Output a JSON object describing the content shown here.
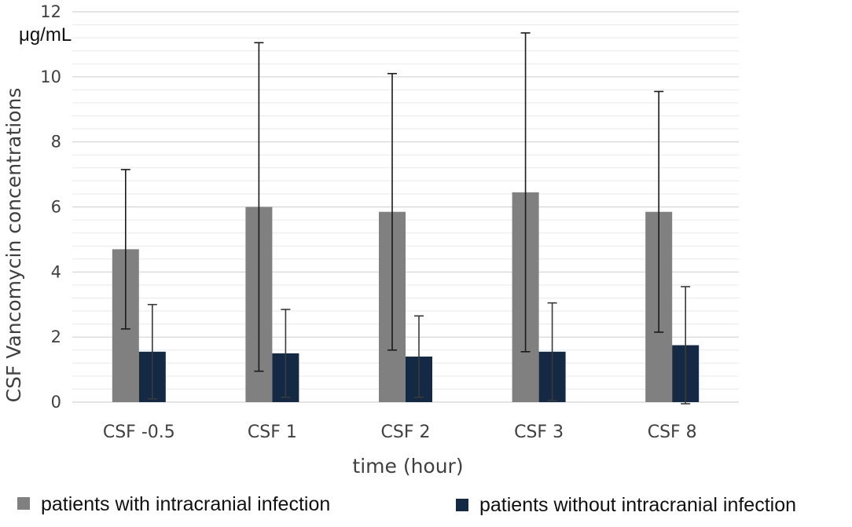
{
  "chart_data": {
    "type": "bar",
    "title": "",
    "unit_label": "μg/mL",
    "xlabel": "time (hour)",
    "ylabel": "CSF Vancomycin concentrations",
    "ylim": [
      0,
      12
    ],
    "y_ticks": [
      "0",
      "2",
      "4",
      "6",
      "8",
      "10",
      "12"
    ],
    "y_tick_values": [
      0,
      2,
      4,
      6,
      8,
      10,
      12
    ],
    "minor_grid_step": 0.4,
    "categories": [
      "CSF -0.5",
      "CSF 1",
      "CSF 2",
      "CSF 3",
      "CSF 8"
    ],
    "legend_position": "bottom",
    "series": [
      {
        "name": "patients with intracranial infection",
        "color": "#808080",
        "values": [
          4.7,
          6.0,
          5.85,
          6.45,
          5.85
        ],
        "error": [
          2.45,
          5.05,
          4.25,
          4.9,
          3.7
        ]
      },
      {
        "name": "patients without intracranial infection",
        "color": "#132944",
        "values": [
          1.55,
          1.5,
          1.4,
          1.55,
          1.75
        ],
        "error": [
          1.45,
          1.35,
          1.25,
          1.5,
          1.8
        ]
      }
    ]
  }
}
